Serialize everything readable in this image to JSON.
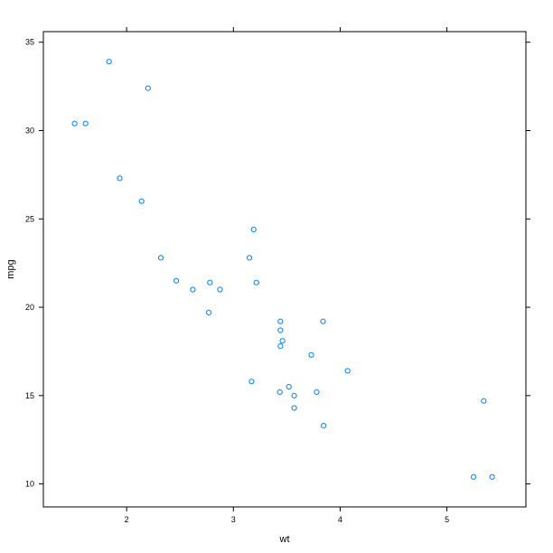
{
  "chart_data": {
    "type": "scatter",
    "title": "",
    "xlabel": "wt",
    "ylabel": "mpg",
    "xlim": [
      1.22,
      5.74
    ],
    "ylim": [
      8.7,
      35.6
    ],
    "x_ticks": [
      2,
      3,
      4,
      5
    ],
    "y_ticks": [
      10,
      15,
      20,
      25,
      30,
      35
    ],
    "grid": false,
    "point_color": "#0080ff",
    "series": [
      {
        "points": [
          [
            1.513,
            30.4
          ],
          [
            1.615,
            30.4
          ],
          [
            1.835,
            33.9
          ],
          [
            1.935,
            27.3
          ],
          [
            2.14,
            26.0
          ],
          [
            2.2,
            32.4
          ],
          [
            2.32,
            22.8
          ],
          [
            2.465,
            21.5
          ],
          [
            2.62,
            21.0
          ],
          [
            2.77,
            19.7
          ],
          [
            2.78,
            21.4
          ],
          [
            2.875,
            21.0
          ],
          [
            3.15,
            22.8
          ],
          [
            3.17,
            15.8
          ],
          [
            3.19,
            24.4
          ],
          [
            3.215,
            21.4
          ],
          [
            3.435,
            15.2
          ],
          [
            3.44,
            18.7
          ],
          [
            3.44,
            19.2
          ],
          [
            3.44,
            17.8
          ],
          [
            3.46,
            18.1
          ],
          [
            3.52,
            15.5
          ],
          [
            3.57,
            15.0
          ],
          [
            3.57,
            14.3
          ],
          [
            3.73,
            17.3
          ],
          [
            3.78,
            15.2
          ],
          [
            3.84,
            19.2
          ],
          [
            3.845,
            13.3
          ],
          [
            4.07,
            16.4
          ],
          [
            5.25,
            10.4
          ],
          [
            5.345,
            14.7
          ],
          [
            5.424,
            10.4
          ]
        ]
      }
    ]
  }
}
